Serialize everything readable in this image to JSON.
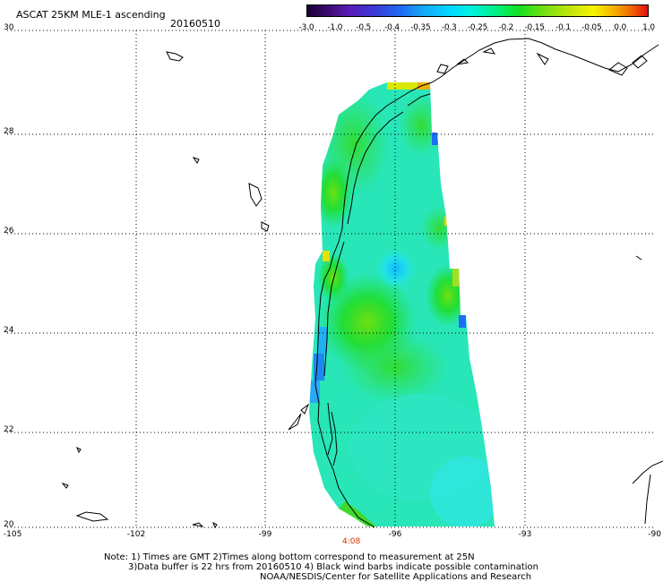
{
  "header": {
    "title": "ASCAT 25KM MLE-1 ascending",
    "date": "20160510"
  },
  "colorbar": {
    "ticks": [
      "-3.0",
      "-1.0",
      "-0.5",
      "-0.4",
      "-0.35",
      "-0.3",
      "-0.25",
      "-0.2",
      "-0.15",
      "-0.1",
      "-0.05",
      "0.0",
      "1.0"
    ]
  },
  "axes": {
    "lat_labels": [
      "30",
      "28",
      "26",
      "24",
      "22",
      "20"
    ],
    "lon_labels": [
      "-105",
      "-102",
      "-99",
      "-96",
      "-93",
      "-90"
    ]
  },
  "pass_time": "4:08",
  "colors": {
    "pass_time": "#d03000",
    "coast": "#000000",
    "grid": "#000000"
  },
  "notes": {
    "line1": "Note: 1) Times are GMT 2)Times along bottom correspond to measurement at 25N",
    "line2": "3)Data buffer is 22 hrs from 20160510 4) Black wind barbs indicate possible contamination",
    "line3": "NOAA/NESDIS/Center for Satellite Applications and Research"
  }
}
